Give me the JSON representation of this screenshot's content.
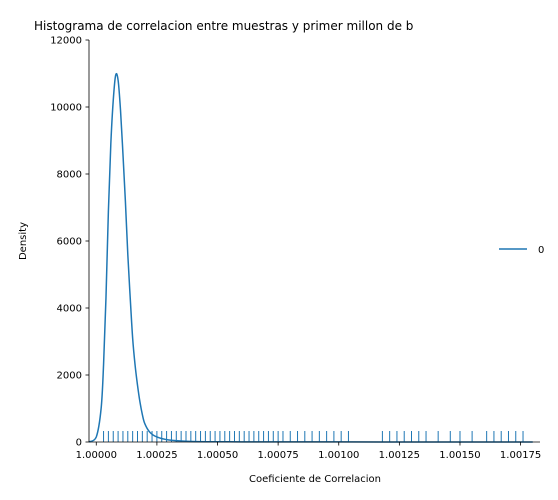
{
  "chart_data": {
    "type": "line",
    "title": "Histograma de correlacion entre muestras y primer millon de b",
    "xlabel": "Coeficiente de Correlacion",
    "ylabel": "Density",
    "xlim": [
      0.99997,
      1.00183
    ],
    "ylim": [
      0,
      12000
    ],
    "xticks": [
      1.0,
      1.00025,
      1.0005,
      1.00075,
      1.001,
      1.00125,
      1.0015,
      1.00175
    ],
    "xtick_labels": [
      "1.00000",
      "1.00025",
      "1.00050",
      "1.00075",
      "1.00100",
      "1.00125",
      "1.00150",
      "1.00175"
    ],
    "yticks": [
      0,
      2000,
      4000,
      6000,
      8000,
      10000,
      12000
    ],
    "ytick_labels": [
      "0",
      "2000",
      "4000",
      "6000",
      "8000",
      "10000",
      "12000"
    ],
    "grid": false,
    "legend": {
      "position": "right",
      "entries": [
        "0"
      ]
    },
    "color": "#1f77b4",
    "series": [
      {
        "name": "0",
        "kind": "kde",
        "x": [
          0.99997,
          1.0,
          1.00002,
          1.00003,
          1.00004,
          1.00005,
          1.00006,
          1.00007,
          1.00008,
          1.00009,
          1.0001,
          1.00011,
          1.00012,
          1.00013,
          1.00014,
          1.00015,
          1.00016,
          1.00017,
          1.00018,
          1.00019,
          1.0002,
          1.00022,
          1.00025,
          1.0003,
          1.0004,
          1.0006,
          1.001,
          1.0015,
          1.0018
        ],
        "y": [
          0,
          150,
          1000,
          2300,
          4300,
          6900,
          8900,
          10200,
          10950,
          10800,
          9900,
          8600,
          7200,
          5600,
          4300,
          3100,
          2300,
          1700,
          1200,
          820,
          550,
          300,
          150,
          60,
          15,
          5,
          2,
          1,
          0
        ]
      },
      {
        "name": "rug",
        "kind": "rug",
        "values": [
          1.00003,
          1.00005,
          1.00007,
          1.00009,
          1.00011,
          1.00013,
          1.00015,
          1.00017,
          1.00019,
          1.00021,
          1.00023,
          1.00025,
          1.00027,
          1.00029,
          1.00031,
          1.00033,
          1.00035,
          1.00037,
          1.00039,
          1.00041,
          1.00043,
          1.00045,
          1.00047,
          1.00049,
          1.00051,
          1.00053,
          1.00055,
          1.00057,
          1.00059,
          1.00061,
          1.00063,
          1.00065,
          1.00067,
          1.00069,
          1.00071,
          1.00073,
          1.00075,
          1.00077,
          1.0008,
          1.00083,
          1.00086,
          1.00089,
          1.00092,
          1.00095,
          1.00098,
          1.00101,
          1.00104,
          1.00118,
          1.00121,
          1.00124,
          1.00127,
          1.0013,
          1.00133,
          1.00136,
          1.00141,
          1.00146,
          1.0015,
          1.00155,
          1.00161,
          1.00164,
          1.00167,
          1.0017,
          1.00173,
          1.00176
        ]
      }
    ]
  }
}
